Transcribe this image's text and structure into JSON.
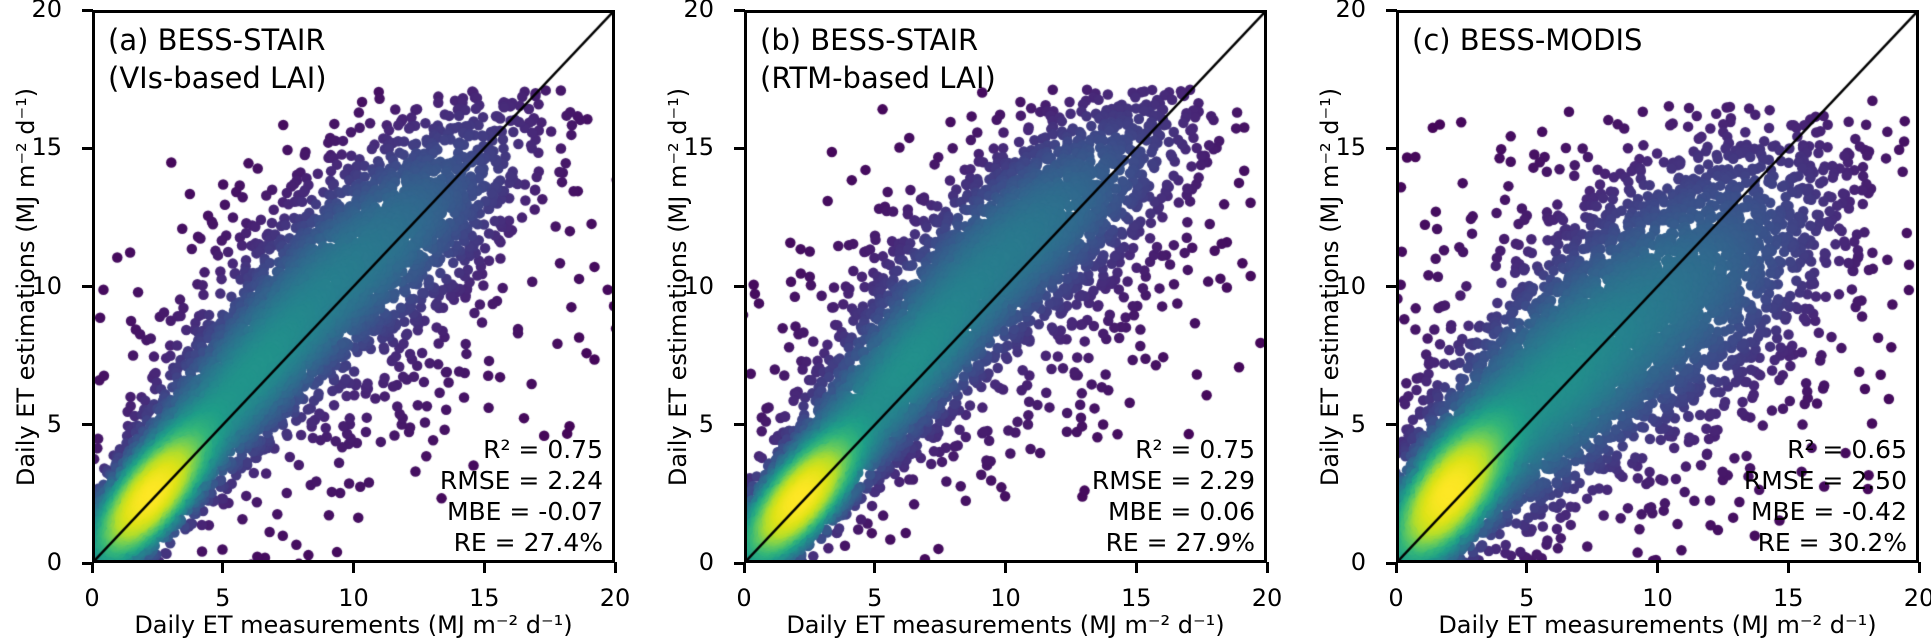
{
  "chart_data": {
    "type": "scatter",
    "subtype": "density-scatter",
    "colormap": "viridis",
    "colormap_hex": {
      "low": "#440154",
      "mid": "#31688e",
      "high": "#fde725"
    },
    "identity_line": true,
    "identity_line_color": "#000000",
    "marker_diameter_px": 10.5,
    "axes": {
      "xlim": [
        0,
        20
      ],
      "ylim": [
        0,
        20
      ],
      "xticks": [
        0,
        5,
        10,
        15,
        20
      ],
      "yticks": [
        0,
        5,
        10,
        15,
        20
      ],
      "xlabel": "Daily ET measurements (MJ m⁻² d⁻¹)",
      "ylabel": "Daily ET estimations (MJ m⁻² d⁻¹)",
      "grid": false
    },
    "panels": [
      {
        "title_line1": "(a) BESS-STAIR",
        "title_line2": "(VIs-based LAI)",
        "stats": [
          "R² = 0.75",
          "RMSE = 2.24",
          "MBE = -0.07",
          "RE = 27.4%"
        ],
        "r2": 0.75,
        "rmse": 2.24,
        "mbe": -0.07,
        "re_percent": 27.4,
        "n_points": 6500,
        "seed": 101,
        "ymax_clip": 17.2,
        "density_model": [
          {
            "w": 0.4,
            "mx": 2.1,
            "my": 2.3,
            "sx": 1.25,
            "sy": 1.4,
            "rho": 0.74
          },
          {
            "w": 0.25,
            "mx": 5.6,
            "my": 6.3,
            "sx": 2.3,
            "sy": 2.4,
            "rho": 0.8
          },
          {
            "w": 0.25,
            "mx": 10.6,
            "my": 11.3,
            "sx": 3.0,
            "sy": 2.6,
            "rho": 0.72
          },
          {
            "w": 0.1,
            "mx": 9.0,
            "my": 8.6,
            "sx": 4.8,
            "sy": 4.2,
            "rho": 0.45
          }
        ]
      },
      {
        "title_line1": "(b) BESS-STAIR",
        "title_line2": "(RTM-based LAI)",
        "stats": [
          "R² = 0.75",
          "RMSE = 2.29",
          "MBE = 0.06",
          "RE = 27.9%"
        ],
        "r2": 0.75,
        "rmse": 2.29,
        "mbe": 0.06,
        "re_percent": 27.9,
        "n_points": 6500,
        "seed": 202,
        "ymax_clip": 17.2,
        "density_model": [
          {
            "w": 0.4,
            "mx": 2.0,
            "my": 2.2,
            "sx": 1.25,
            "sy": 1.35,
            "rho": 0.74
          },
          {
            "w": 0.25,
            "mx": 5.8,
            "my": 6.6,
            "sx": 2.3,
            "sy": 2.4,
            "rho": 0.8
          },
          {
            "w": 0.25,
            "mx": 10.8,
            "my": 11.9,
            "sx": 3.0,
            "sy": 2.5,
            "rho": 0.72
          },
          {
            "w": 0.1,
            "mx": 9.2,
            "my": 9.0,
            "sx": 4.8,
            "sy": 4.2,
            "rho": 0.45
          }
        ]
      },
      {
        "title_line1": "(c) BESS-MODIS",
        "stats": [
          "R² = 0.65",
          "RMSE = 2.50",
          "MBE = -0.42",
          "RE = 30.2%"
        ],
        "r2": 0.65,
        "rmse": 2.5,
        "mbe": -0.42,
        "re_percent": 30.2,
        "n_points": 7000,
        "seed": 303,
        "ymax_clip": 16.8,
        "density_model": [
          {
            "w": 0.38,
            "mx": 1.9,
            "my": 2.4,
            "sx": 1.25,
            "sy": 1.5,
            "rho": 0.66
          },
          {
            "w": 0.26,
            "mx": 5.4,
            "my": 5.8,
            "sx": 2.5,
            "sy": 2.5,
            "rho": 0.62
          },
          {
            "w": 0.26,
            "mx": 10.4,
            "my": 9.7,
            "sx": 3.3,
            "sy": 2.9,
            "rho": 0.55
          },
          {
            "w": 0.1,
            "mx": 8.8,
            "my": 8.2,
            "sx": 5.2,
            "sy": 4.6,
            "rho": 0.3
          }
        ]
      }
    ]
  }
}
